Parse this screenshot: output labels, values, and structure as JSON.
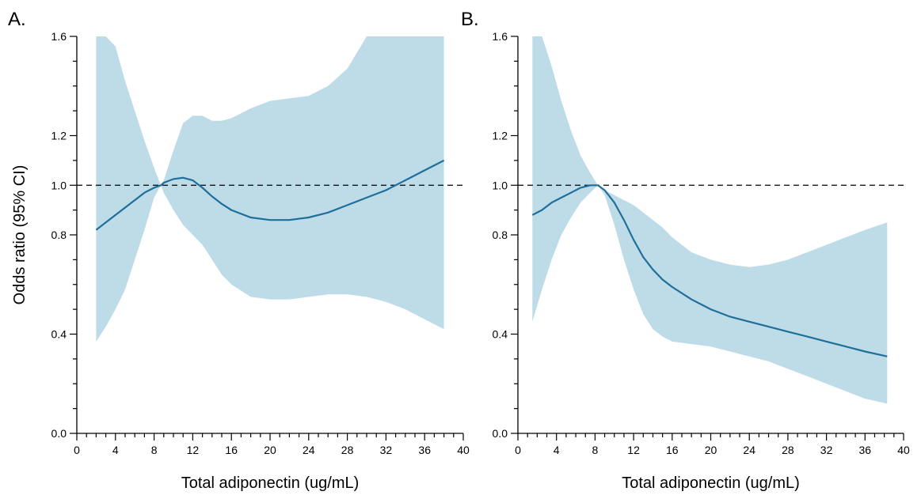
{
  "shared_ylabel": "Odds ratio (95% CI)",
  "colors": {
    "band": "#bddce8",
    "curve": "#1f6f9a",
    "reference": "#000000"
  },
  "chart_data": [
    {
      "type": "line",
      "panel_label": "A.",
      "xlabel": "Total adiponectin (ug/mL)",
      "xlim": [
        0,
        40
      ],
      "ylim": [
        0,
        1.6
      ],
      "x_ticks_major": [
        0,
        4,
        8,
        12,
        16,
        20,
        24,
        28,
        32,
        36,
        40
      ],
      "x_ticks_minor_step": 1,
      "y_ticks_labeled": [
        0.0,
        0.4,
        0.8,
        1.0,
        1.2,
        1.6
      ],
      "y_tick_labels": [
        "0.0",
        "0.4",
        "0.8",
        "1.0",
        "1.2",
        "1.6"
      ],
      "y_ticks_minor": [
        0.1,
        0.2,
        0.3,
        0.5,
        0.6,
        0.7,
        0.9,
        1.1,
        1.3,
        1.4,
        1.5
      ],
      "reference_line": 1.0,
      "x": [
        2,
        3,
        4,
        5,
        6,
        7,
        8,
        8.7,
        9,
        10,
        11,
        12,
        13,
        14,
        15,
        16,
        18,
        20,
        22,
        24,
        26,
        28,
        30,
        32,
        34,
        36,
        38
      ],
      "estimate": [
        0.82,
        0.85,
        0.88,
        0.91,
        0.94,
        0.97,
        0.99,
        1.0,
        1.01,
        1.025,
        1.03,
        1.02,
        0.99,
        0.955,
        0.925,
        0.9,
        0.87,
        0.86,
        0.86,
        0.87,
        0.89,
        0.92,
        0.95,
        0.98,
        1.02,
        1.06,
        1.1
      ],
      "upper": [
        1.6,
        1.6,
        1.56,
        1.42,
        1.3,
        1.18,
        1.07,
        1.0,
        1.02,
        1.14,
        1.25,
        1.28,
        1.28,
        1.26,
        1.26,
        1.27,
        1.31,
        1.34,
        1.35,
        1.36,
        1.4,
        1.47,
        1.6,
        1.6,
        1.6,
        1.6,
        1.6
      ],
      "lower": [
        0.37,
        0.43,
        0.5,
        0.58,
        0.7,
        0.82,
        0.95,
        1.0,
        0.97,
        0.9,
        0.84,
        0.8,
        0.76,
        0.7,
        0.64,
        0.6,
        0.55,
        0.54,
        0.54,
        0.55,
        0.56,
        0.56,
        0.55,
        0.53,
        0.5,
        0.46,
        0.42
      ]
    },
    {
      "type": "line",
      "panel_label": "B.",
      "xlabel": "Total adiponectin (ug/mL)",
      "xlim": [
        0,
        40
      ],
      "ylim": [
        0,
        1.6
      ],
      "x_ticks_major": [
        0,
        4,
        8,
        12,
        16,
        20,
        24,
        28,
        32,
        36,
        40
      ],
      "x_ticks_minor_step": 1,
      "y_ticks_labeled": [
        0.0,
        0.4,
        0.8,
        1.0,
        1.2,
        1.6
      ],
      "y_tick_labels": [
        "0.0",
        "0.4",
        "0.8",
        "1.0",
        "1.2",
        "1.6"
      ],
      "y_ticks_minor": [
        0.1,
        0.2,
        0.3,
        0.5,
        0.6,
        0.7,
        0.9,
        1.1,
        1.3,
        1.4,
        1.5
      ],
      "reference_line": 1.0,
      "x": [
        1.5,
        2.5,
        3.5,
        4.5,
        5.5,
        6.5,
        7.5,
        8.3,
        9,
        10,
        11,
        12,
        13,
        14,
        15,
        16,
        18,
        20,
        22,
        24,
        26,
        28,
        30,
        32,
        34,
        36,
        38.3
      ],
      "estimate": [
        0.88,
        0.9,
        0.93,
        0.95,
        0.97,
        0.99,
        1.0,
        1.0,
        0.98,
        0.93,
        0.86,
        0.78,
        0.71,
        0.66,
        0.62,
        0.59,
        0.54,
        0.5,
        0.47,
        0.45,
        0.43,
        0.41,
        0.39,
        0.37,
        0.35,
        0.33,
        0.31
      ],
      "upper": [
        1.6,
        1.6,
        1.48,
        1.34,
        1.22,
        1.12,
        1.05,
        1.0,
        0.98,
        0.96,
        0.94,
        0.92,
        0.89,
        0.86,
        0.83,
        0.79,
        0.73,
        0.7,
        0.68,
        0.67,
        0.68,
        0.7,
        0.73,
        0.76,
        0.79,
        0.82,
        0.85
      ],
      "lower": [
        0.45,
        0.58,
        0.7,
        0.8,
        0.87,
        0.93,
        0.97,
        1.0,
        0.96,
        0.84,
        0.7,
        0.58,
        0.48,
        0.42,
        0.39,
        0.37,
        0.36,
        0.35,
        0.33,
        0.31,
        0.29,
        0.26,
        0.23,
        0.2,
        0.17,
        0.14,
        0.12
      ]
    }
  ]
}
